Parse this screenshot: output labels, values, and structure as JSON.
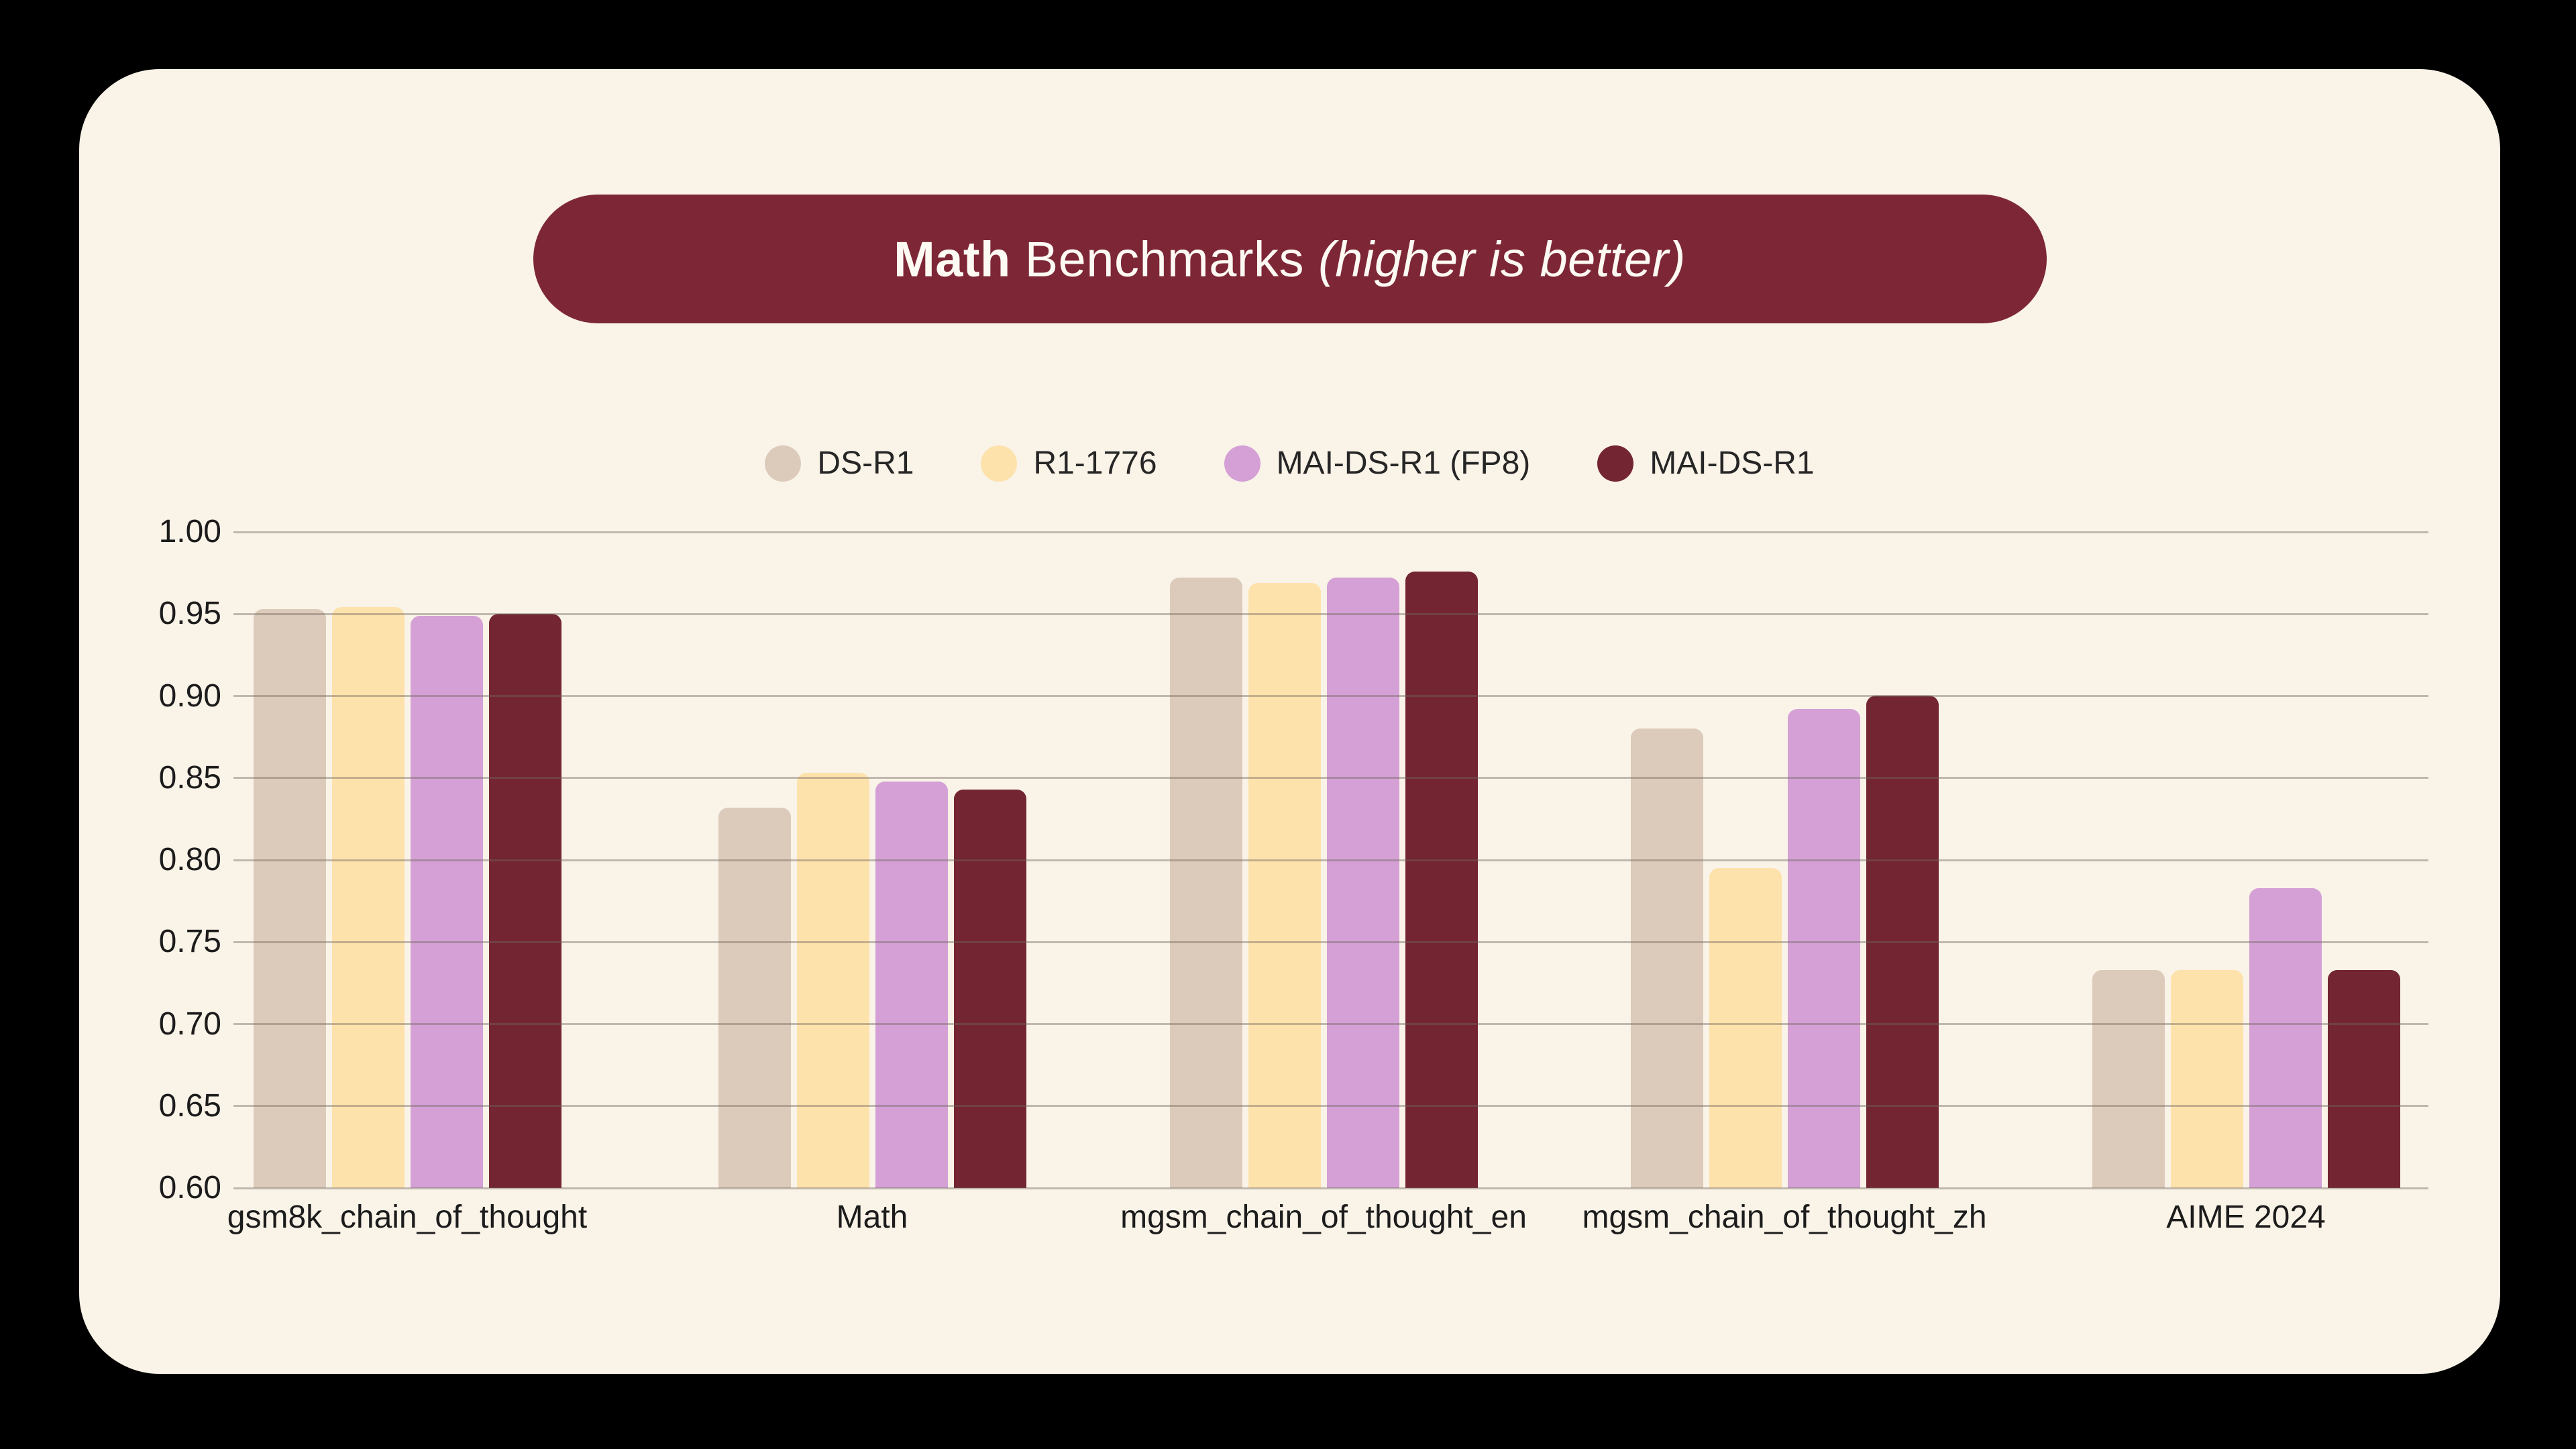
{
  "page": {
    "background": "#000000",
    "card_background": "#faf3e8"
  },
  "title": {
    "bold": "Math",
    "regular": " Benchmarks ",
    "italic": "(higher is better)",
    "pill_color": "#7d2736",
    "text_color": "#fdf9f3"
  },
  "chart_data": {
    "type": "bar",
    "title": "Math Benchmarks (higher is better)",
    "categories": [
      "gsm8k_chain_of_thought",
      "Math",
      "mgsm_chain_of_thought_en",
      "mgsm_chain_of_thought_zh",
      "AIME 2024"
    ],
    "series": [
      {
        "name": "DS-R1",
        "color": "#dccaba",
        "values": [
          0.953,
          0.832,
          0.972,
          0.88,
          0.733
        ]
      },
      {
        "name": "R1-1776",
        "color": "#fde2ac",
        "values": [
          0.954,
          0.853,
          0.969,
          0.795,
          0.733
        ]
      },
      {
        "name": "MAI-DS-R1 (FP8)",
        "color": "#d4a0d6",
        "values": [
          0.949,
          0.848,
          0.972,
          0.892,
          0.783
        ]
      },
      {
        "name": "MAI-DS-R1",
        "color": "#732532",
        "values": [
          0.95,
          0.843,
          0.976,
          0.9,
          0.733
        ]
      }
    ],
    "ylim": [
      0.6,
      1.0
    ],
    "yticks": [
      1.0,
      0.95,
      0.9,
      0.85,
      0.8,
      0.75,
      0.7,
      0.65,
      0.6
    ],
    "ytick_labels": [
      "1.00",
      "0.95",
      "0.90",
      "0.85",
      "0.80",
      "0.75",
      "0.70",
      "0.65",
      "0.60"
    ],
    "grid": true,
    "gridline_color": "rgba(111,103,92,0.42)",
    "legend_position": "top-center",
    "xlabel": "",
    "ylabel": ""
  }
}
